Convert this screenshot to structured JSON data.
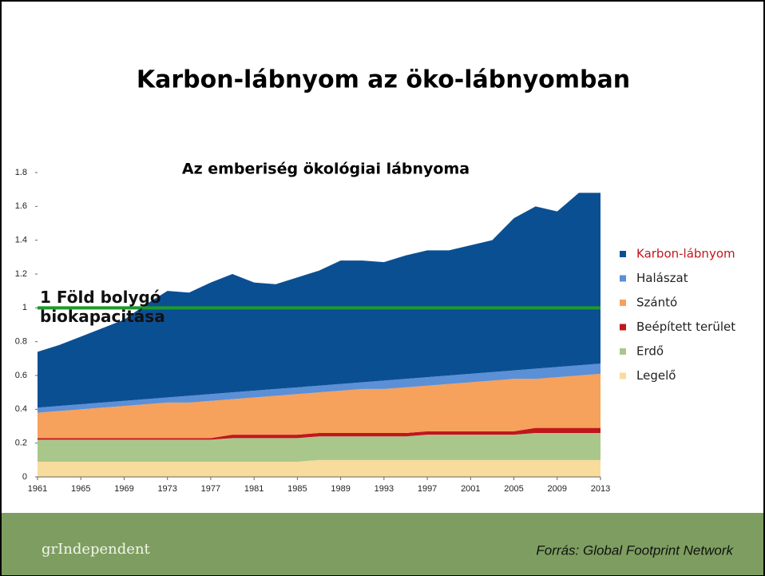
{
  "title": "Karbon-lábnyom az öko-lábnyomban",
  "chart_data": {
    "type": "stacked_area",
    "title": "Az emberiség ökológiai lábnyoma",
    "x": [
      1961,
      1963,
      1965,
      1967,
      1969,
      1971,
      1973,
      1975,
      1977,
      1979,
      1981,
      1983,
      1985,
      1987,
      1989,
      1991,
      1993,
      1995,
      1997,
      1999,
      2001,
      2003,
      2005,
      2007,
      2009,
      2011,
      2013
    ],
    "xlim": [
      1961,
      2013
    ],
    "xticks": [
      1961,
      1965,
      1969,
      1973,
      1977,
      1981,
      1985,
      1989,
      1993,
      1997,
      2001,
      2005,
      2009,
      2013
    ],
    "ylim": [
      0,
      1.8
    ],
    "yticks": [
      0,
      0.2,
      0.4,
      0.6,
      0.8,
      1,
      1.2,
      1.4,
      1.6,
      1.8
    ],
    "series": [
      {
        "name": "Karbon-lábnyom",
        "color": "#0b4f93",
        "values": [
          0.33,
          0.36,
          0.4,
          0.44,
          0.48,
          0.56,
          0.63,
          0.61,
          0.66,
          0.7,
          0.64,
          0.62,
          0.65,
          0.68,
          0.73,
          0.72,
          0.7,
          0.73,
          0.75,
          0.74,
          0.76,
          0.78,
          0.9,
          0.96,
          0.92,
          1.02,
          1.01
        ]
      },
      {
        "name": "Halászat",
        "color": "#5b8fd6",
        "values": [
          0.03,
          0.03,
          0.03,
          0.03,
          0.03,
          0.03,
          0.03,
          0.04,
          0.04,
          0.04,
          0.04,
          0.04,
          0.04,
          0.04,
          0.04,
          0.04,
          0.05,
          0.05,
          0.05,
          0.05,
          0.05,
          0.05,
          0.05,
          0.06,
          0.06,
          0.06,
          0.06
        ]
      },
      {
        "name": "Szántó",
        "color": "#f6a15c",
        "values": [
          0.15,
          0.16,
          0.17,
          0.18,
          0.19,
          0.2,
          0.21,
          0.21,
          0.22,
          0.21,
          0.22,
          0.23,
          0.24,
          0.24,
          0.25,
          0.26,
          0.26,
          0.27,
          0.27,
          0.28,
          0.29,
          0.3,
          0.31,
          0.29,
          0.3,
          0.31,
          0.32
        ]
      },
      {
        "name": "Beépített terület",
        "color": "#c0171c",
        "values": [
          0.01,
          0.01,
          0.01,
          0.01,
          0.01,
          0.01,
          0.01,
          0.01,
          0.01,
          0.02,
          0.02,
          0.02,
          0.02,
          0.02,
          0.02,
          0.02,
          0.02,
          0.02,
          0.02,
          0.02,
          0.02,
          0.02,
          0.02,
          0.03,
          0.03,
          0.03,
          0.03
        ]
      },
      {
        "name": "Erdő",
        "color": "#a9c78a",
        "values": [
          0.13,
          0.13,
          0.13,
          0.13,
          0.13,
          0.13,
          0.13,
          0.13,
          0.13,
          0.14,
          0.14,
          0.14,
          0.14,
          0.14,
          0.14,
          0.14,
          0.14,
          0.14,
          0.15,
          0.15,
          0.15,
          0.15,
          0.15,
          0.16,
          0.16,
          0.16,
          0.16
        ]
      },
      {
        "name": "Legelő",
        "color": "#f8dc9c",
        "values": [
          0.09,
          0.09,
          0.09,
          0.09,
          0.09,
          0.09,
          0.09,
          0.09,
          0.09,
          0.09,
          0.09,
          0.09,
          0.09,
          0.1,
          0.1,
          0.1,
          0.1,
          0.1,
          0.1,
          0.1,
          0.1,
          0.1,
          0.1,
          0.1,
          0.1,
          0.1,
          0.1
        ]
      }
    ],
    "reference_line": {
      "value": 1,
      "color": "#1c9a2c",
      "label_lines": [
        "1 Föld bolygó",
        "biokapacitása"
      ]
    }
  },
  "footer": {
    "logo": "grIndependent",
    "source": "Forrás: Global Footprint Network"
  }
}
